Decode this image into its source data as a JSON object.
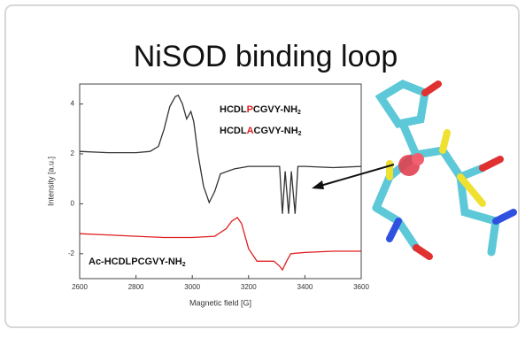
{
  "chart_data": {
    "type": "line",
    "title": "NiSOD binding loop",
    "x_label": "Magnetic field [G]",
    "y_label": "Intensity [a.u.]",
    "xlim": [
      2600,
      3600
    ],
    "xticks": [
      2600,
      2800,
      3000,
      3200,
      3400,
      3600
    ],
    "ylim": [
      -3,
      4.8
    ],
    "yticks": [
      -2,
      0,
      2,
      4
    ],
    "series": [
      {
        "color": "#333333",
        "x": [
          2600,
          2700,
          2800,
          2850,
          2880,
          2900,
          2920,
          2940,
          2950,
          2965,
          2980,
          2995,
          3005,
          3020,
          3040,
          3060,
          3080,
          3100,
          3150,
          3200,
          3280,
          3310,
          3320,
          3330,
          3342,
          3352,
          3365,
          3375,
          3400,
          3500,
          3600
        ],
        "values": [
          2.1,
          2.05,
          2.05,
          2.1,
          2.3,
          3.0,
          3.9,
          4.3,
          4.35,
          4.0,
          3.4,
          3.7,
          3.3,
          2.0,
          0.7,
          0.05,
          0.5,
          1.2,
          1.4,
          1.5,
          1.5,
          1.5,
          -0.4,
          1.3,
          -0.4,
          1.3,
          -0.4,
          1.5,
          1.5,
          1.45,
          1.5
        ]
      },
      {
        "color": "#e02020",
        "x": [
          2600,
          2700,
          2800,
          2900,
          3000,
          3080,
          3120,
          3140,
          3160,
          3175,
          3200,
          3230,
          3260,
          3290,
          3310,
          3320,
          3335,
          3350,
          3400,
          3500,
          3600
        ],
        "values": [
          -1.2,
          -1.25,
          -1.3,
          -1.35,
          -1.35,
          -1.3,
          -1.0,
          -0.7,
          -0.55,
          -0.8,
          -1.8,
          -2.3,
          -2.3,
          -2.3,
          -2.5,
          -2.65,
          -2.3,
          -2.0,
          -1.95,
          -1.9,
          -1.9
        ]
      }
    ],
    "annotations": [
      {
        "parts": [
          {
            "text": "HCDL",
            "color": "#111111"
          },
          {
            "text": "P",
            "color": "#e02020"
          },
          {
            "text": "CGVY-NH",
            "color": "#111111"
          },
          {
            "text": "2",
            "color": "#111111",
            "subscript": true
          }
        ]
      },
      {
        "parts": [
          {
            "text": "HCDL",
            "color": "#111111"
          },
          {
            "text": "A",
            "color": "#e02020"
          },
          {
            "text": "CGVY-NH",
            "color": "#111111"
          },
          {
            "text": "2",
            "color": "#111111",
            "subscript": true
          }
        ]
      },
      {
        "parts": [
          {
            "text": "Ac-HCDLPCGVY-NH",
            "color": "#111111"
          },
          {
            "text": "2",
            "color": "#111111",
            "subscript": true
          }
        ]
      }
    ]
  }
}
